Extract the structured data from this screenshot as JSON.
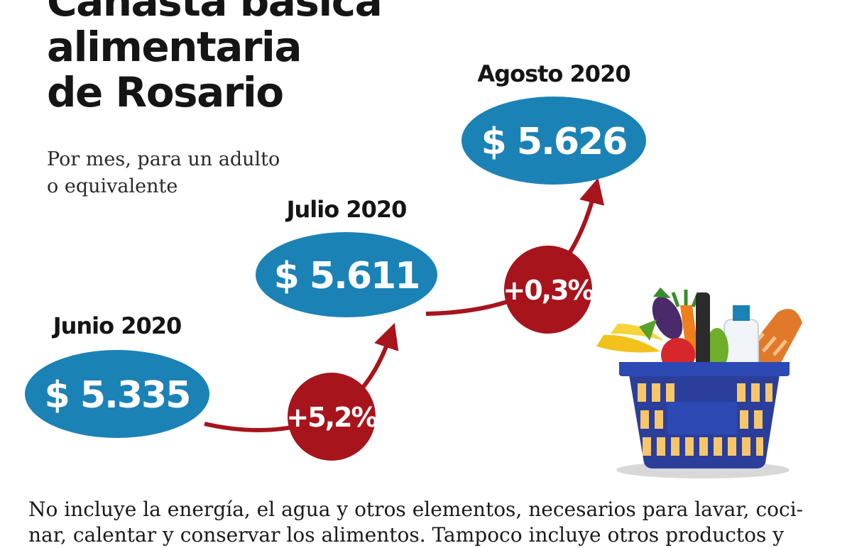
{
  "title_lines": [
    "Canasta básica",
    "alimentaria",
    "de Rosario"
  ],
  "subtitle_lines": [
    "Por mes, para un adulto",
    "o equivalente"
  ],
  "footnote_lines": [
    "No incluye la energía, el agua y otros elementos, necesarios para lavar, coci-",
    "nar, calentar y conservar los alimentos. Tampoco incluye otros productos y"
  ],
  "colors": {
    "ellipse": "#1b82b6",
    "change_circle": "#a7141c",
    "arrow": "#a7141c",
    "text_dark": "#151515",
    "text_light": "#ffffff"
  },
  "chart_data": {
    "type": "line",
    "categories": [
      "Junio 2020",
      "Julio 2020",
      "Agosto 2020"
    ],
    "values": [
      5335,
      5611,
      5626
    ],
    "value_labels": [
      "$ 5.335",
      "$ 5.611",
      "$ 5.626"
    ],
    "change_labels": [
      "+5,2%",
      "+0,3%"
    ],
    "unit": "$"
  },
  "illustration": "shopping-basket-with-groceries"
}
